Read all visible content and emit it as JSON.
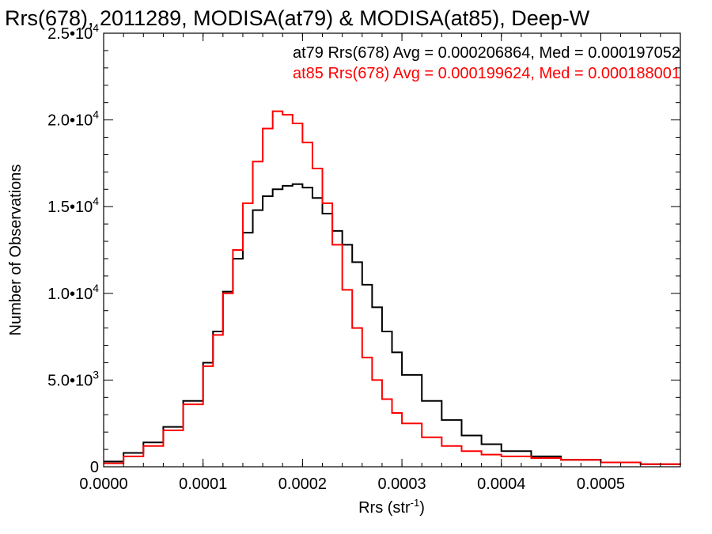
{
  "chart_data": {
    "type": "line",
    "style": "histogram-step",
    "title": "Rrs(678), 2011289, MODISA(at79) & MODISA(at85), Deep-W",
    "xlabel": "Rrs (str",
    "xlabel_sup": "-1",
    "xlabel_close": ")",
    "ylabel": "Number of Observations",
    "xlim": [
      0,
      0.00058
    ],
    "ylim": [
      0,
      25000
    ],
    "x_ticks": [
      {
        "value": 0.0,
        "label": "0.0000"
      },
      {
        "value": 0.0001,
        "label": "0.0001"
      },
      {
        "value": 0.0002,
        "label": "0.0002"
      },
      {
        "value": 0.0003,
        "label": "0.0003"
      },
      {
        "value": 0.0004,
        "label": "0.0004"
      },
      {
        "value": 0.0005,
        "label": "0.0005"
      }
    ],
    "y_ticks": [
      {
        "value": 0,
        "mant": "0",
        "exp": ""
      },
      {
        "value": 5000,
        "mant": "5.0•10",
        "exp": "3"
      },
      {
        "value": 10000,
        "mant": "1.0•10",
        "exp": "4"
      },
      {
        "value": 15000,
        "mant": "1.5•10",
        "exp": "4"
      },
      {
        "value": 20000,
        "mant": "2.0•10",
        "exp": "4"
      },
      {
        "value": 25000,
        "mant": "2.5•10",
        "exp": "4"
      }
    ],
    "grid": false,
    "legend_position": "top-right",
    "series": [
      {
        "label": "at79 Rrs(678) Avg = 0.000206864, Med = 0.000197052",
        "color": "#000000",
        "x": [
          0.0,
          2e-05,
          4e-05,
          6e-05,
          8e-05,
          0.0001,
          0.00011,
          0.00012,
          0.00013,
          0.00014,
          0.00015,
          0.00016,
          0.00017,
          0.00018,
          0.00019,
          0.0002,
          0.00021,
          0.00022,
          0.00023,
          0.00024,
          0.00025,
          0.00026,
          0.00027,
          0.00028,
          0.00029,
          0.0003,
          0.00032,
          0.00034,
          0.00036,
          0.00038,
          0.0004,
          0.00043,
          0.00046,
          0.0005,
          0.00054,
          0.00058
        ],
        "y": [
          300,
          800,
          1400,
          2300,
          3800,
          6000,
          7800,
          10100,
          12000,
          13500,
          14800,
          15600,
          16000,
          16200,
          16300,
          16100,
          15500,
          14600,
          13600,
          12800,
          11800,
          10500,
          9200,
          7800,
          6600,
          5300,
          3800,
          2700,
          1800,
          1300,
          900,
          600,
          400,
          250,
          150,
          100
        ]
      },
      {
        "label": "at85 Rrs(678) Avg = 0.000199624, Med = 0.000188001",
        "color": "#ff0000",
        "x": [
          0.0,
          2e-05,
          4e-05,
          6e-05,
          8e-05,
          0.0001,
          0.00011,
          0.00012,
          0.00013,
          0.00014,
          0.00015,
          0.00016,
          0.00017,
          0.00018,
          0.00019,
          0.0002,
          0.00021,
          0.00022,
          0.00023,
          0.00024,
          0.00025,
          0.00026,
          0.00027,
          0.00028,
          0.00029,
          0.0003,
          0.00032,
          0.00034,
          0.00036,
          0.00038,
          0.0004,
          0.00043,
          0.00046,
          0.0005,
          0.00054,
          0.00058
        ],
        "y": [
          200,
          600,
          1200,
          2100,
          3600,
          5800,
          7600,
          10000,
          12500,
          15200,
          17600,
          19500,
          20500,
          20300,
          19800,
          18700,
          17200,
          15200,
          12800,
          10200,
          8000,
          6300,
          5000,
          3900,
          3100,
          2500,
          1700,
          1200,
          900,
          700,
          600,
          500,
          400,
          250,
          150,
          100
        ]
      }
    ]
  }
}
